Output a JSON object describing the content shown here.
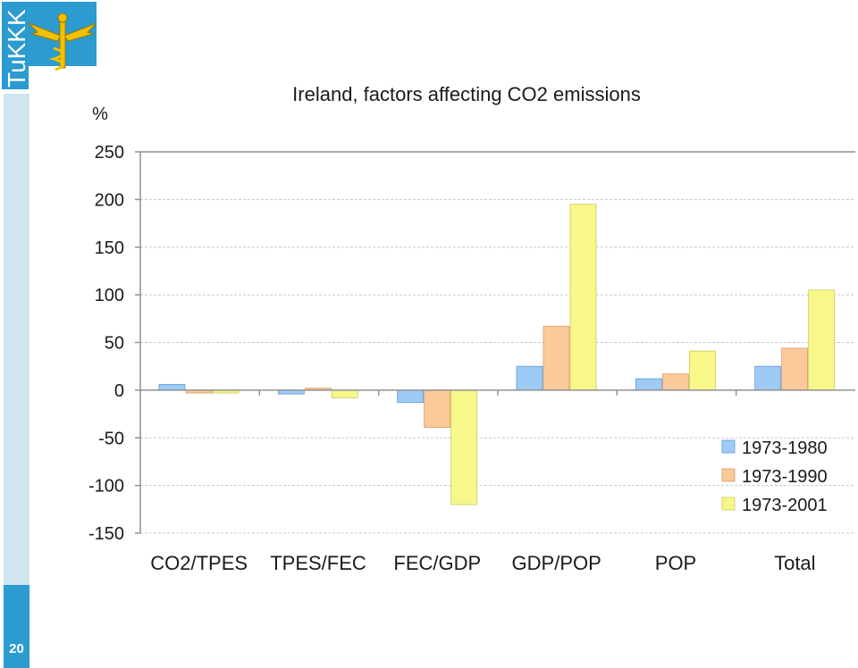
{
  "slide_number": "20",
  "logo_text": "TuKKK",
  "colors": {
    "series": [
      "#9ecbf5",
      "#fcc99a",
      "#f8f88a"
    ],
    "series_stroke": [
      "#5a9ad8",
      "#d99a60",
      "#c9c95a"
    ],
    "sidebar_light": "#cfe6f1",
    "sidebar_dark": "#2b9bd0"
  },
  "chart_data": {
    "type": "bar",
    "title": "Ireland, factors affecting CO2 emissions",
    "ylabel": "%",
    "ylim": [
      -150,
      250
    ],
    "yticks": [
      250,
      200,
      150,
      100,
      50,
      0,
      -50,
      -100,
      -150
    ],
    "grid": true,
    "legend_position": "bottom-right",
    "categories": [
      "CO2/TPES",
      "TPES/FEC",
      "FEC/GDP",
      "GDP/POP",
      "POP",
      "Total"
    ],
    "series": [
      {
        "name": "1973-1980",
        "values": [
          6,
          -4,
          -13,
          25,
          12,
          25
        ]
      },
      {
        "name": "1973-1990",
        "values": [
          -3,
          2,
          -39,
          67,
          17,
          44
        ]
      },
      {
        "name": "1973-2001",
        "values": [
          -3,
          -8,
          -120,
          195,
          41,
          105
        ]
      }
    ]
  }
}
